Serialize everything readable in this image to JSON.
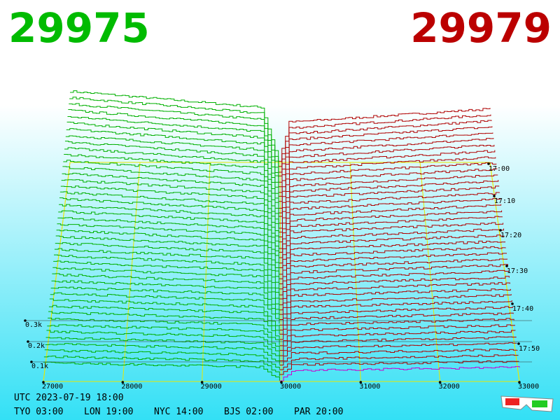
{
  "header": {
    "bid": "29975",
    "ask": "29979"
  },
  "price_axis": {
    "ticks": [
      27000,
      28000,
      29000,
      30000,
      31000,
      32000,
      33000
    ]
  },
  "depth_axis": {
    "ticks": [
      "0.1k",
      "0.2k",
      "0.3k"
    ]
  },
  "time_axis": {
    "ticks": [
      "17:00",
      "17:10",
      "17:20",
      "17:30",
      "17:40",
      "17:50"
    ]
  },
  "footer": {
    "utc": "UTC 2023-07-19 18:00",
    "cities": [
      "TYO 03:00",
      "LON 19:00",
      "NYC 14:00",
      "BJS 02:00",
      "PAR 20:00"
    ]
  }
}
